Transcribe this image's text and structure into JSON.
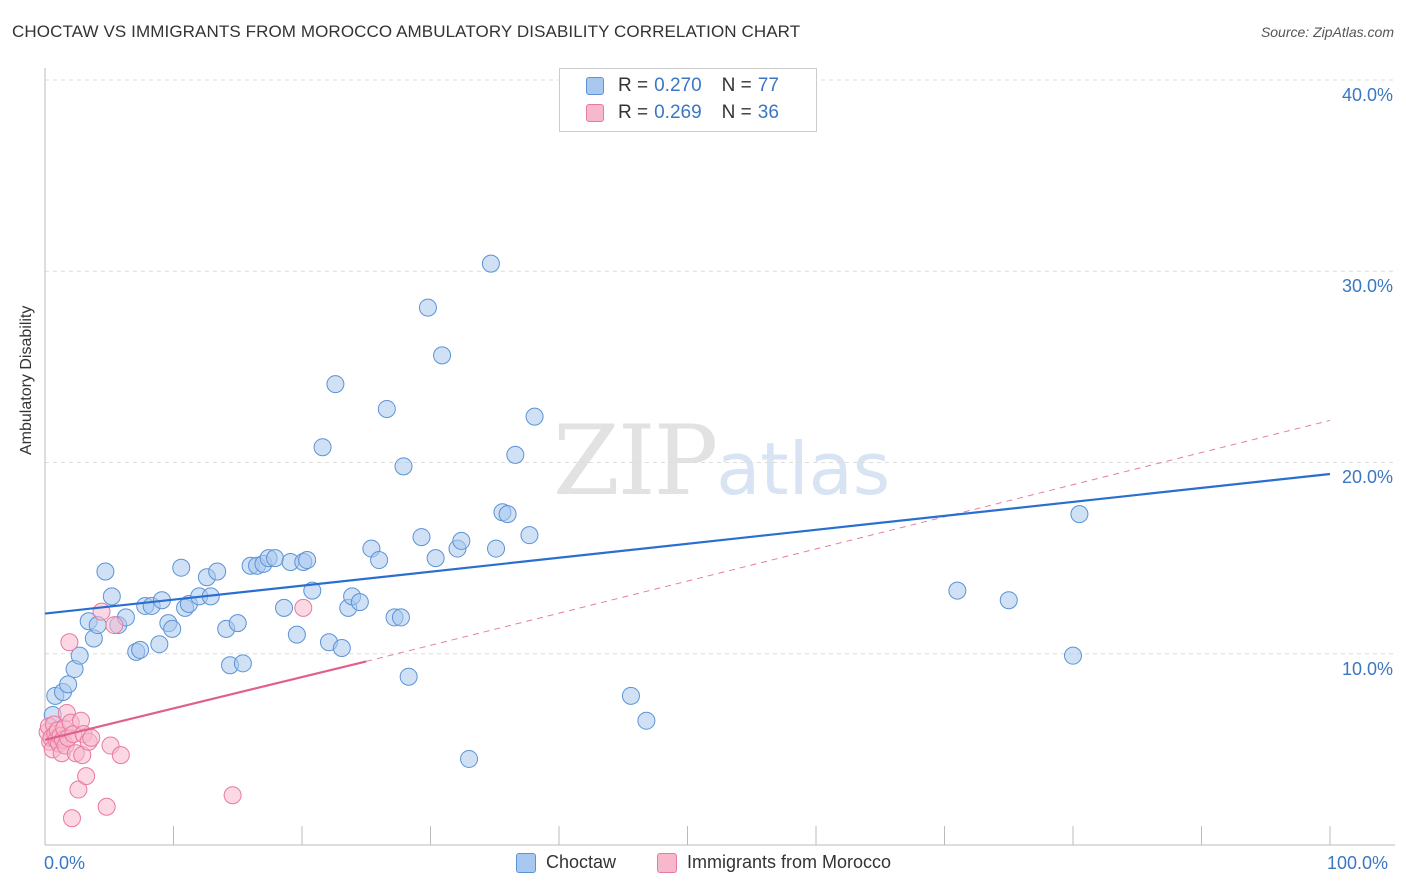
{
  "title": "CHOCTAW VS IMMIGRANTS FROM MOROCCO AMBULATORY DISABILITY CORRELATION CHART",
  "source": "Source: ZipAtlas.com",
  "watermark": {
    "zip": "ZIP",
    "atlas": "atlas"
  },
  "legend": {
    "rows": [
      {
        "r_label": "R =",
        "r_value": "0.270",
        "n_label": "N =",
        "n_value": "77"
      },
      {
        "r_label": "R =",
        "r_value": "0.269",
        "n_label": "N =",
        "n_value": "36"
      }
    ]
  },
  "colors": {
    "blue_fill": "#a9c8ef",
    "blue_stroke": "#5b93d6",
    "blue_line": "#2a6fd0",
    "pink_fill": "#f7b8cc",
    "pink_stroke": "#e87aa0",
    "pink_line": "#e0608c",
    "grid": "#dddddd",
    "tick_label": "#3a77c2"
  },
  "chart_data": {
    "type": "scatter",
    "title": "CHOCTAW VS IMMIGRANTS FROM MOROCCO AMBULATORY DISABILITY CORRELATION CHART",
    "xlabel": "",
    "ylabel": "Ambulatory Disability",
    "xlim": [
      0,
      100
    ],
    "ylim": [
      0,
      40
    ],
    "x_tick_labels": [
      "0.0%",
      "100.0%"
    ],
    "y_ticks": [
      10,
      20,
      30,
      40
    ],
    "y_tick_labels": [
      "10.0%",
      "20.0%",
      "30.0%",
      "40.0%"
    ],
    "grid": true,
    "series": [
      {
        "name": "Choctaw",
        "color": "#a9c8ef",
        "r": 0.27,
        "n": 77,
        "trend": {
          "x0": 0,
          "y0": 12.1,
          "x1": 100,
          "y1": 19.4,
          "style": "solid"
        },
        "points": [
          [
            0.6,
            6.8
          ],
          [
            0.8,
            7.8
          ],
          [
            1.4,
            8.0
          ],
          [
            1.8,
            8.4
          ],
          [
            2.3,
            9.2
          ],
          [
            2.7,
            9.9
          ],
          [
            3.4,
            11.7
          ],
          [
            3.8,
            10.8
          ],
          [
            4.1,
            11.5
          ],
          [
            4.7,
            14.3
          ],
          [
            5.2,
            13.0
          ],
          [
            5.7,
            11.5
          ],
          [
            6.3,
            11.9
          ],
          [
            7.1,
            10.1
          ],
          [
            7.4,
            10.2
          ],
          [
            7.8,
            12.5
          ],
          [
            8.3,
            12.5
          ],
          [
            8.9,
            10.5
          ],
          [
            9.1,
            12.8
          ],
          [
            9.6,
            11.6
          ],
          [
            9.9,
            11.3
          ],
          [
            10.6,
            14.5
          ],
          [
            10.9,
            12.4
          ],
          [
            11.2,
            12.6
          ],
          [
            12.0,
            13.0
          ],
          [
            12.6,
            14.0
          ],
          [
            12.9,
            13.0
          ],
          [
            13.4,
            14.3
          ],
          [
            14.1,
            11.3
          ],
          [
            14.4,
            9.4
          ],
          [
            15.0,
            11.6
          ],
          [
            15.4,
            9.5
          ],
          [
            16.0,
            14.6
          ],
          [
            16.5,
            14.6
          ],
          [
            17.0,
            14.7
          ],
          [
            17.4,
            15.0
          ],
          [
            17.9,
            15.0
          ],
          [
            18.6,
            12.4
          ],
          [
            19.1,
            14.8
          ],
          [
            19.6,
            11.0
          ],
          [
            20.1,
            14.8
          ],
          [
            20.4,
            14.9
          ],
          [
            20.8,
            13.3
          ],
          [
            21.6,
            20.8
          ],
          [
            22.1,
            10.6
          ],
          [
            22.6,
            24.1
          ],
          [
            23.1,
            10.3
          ],
          [
            23.6,
            12.4
          ],
          [
            23.9,
            13.0
          ],
          [
            24.5,
            12.7
          ],
          [
            25.4,
            15.5
          ],
          [
            26.0,
            14.9
          ],
          [
            26.6,
            22.8
          ],
          [
            27.2,
            11.9
          ],
          [
            27.7,
            11.9
          ],
          [
            27.9,
            19.8
          ],
          [
            28.3,
            8.8
          ],
          [
            29.3,
            16.1
          ],
          [
            29.8,
            28.1
          ],
          [
            30.4,
            15.0
          ],
          [
            30.9,
            25.6
          ],
          [
            32.1,
            15.5
          ],
          [
            32.4,
            15.9
          ],
          [
            33.0,
            4.5
          ],
          [
            34.7,
            30.4
          ],
          [
            35.1,
            15.5
          ],
          [
            35.6,
            17.4
          ],
          [
            36.0,
            17.3
          ],
          [
            36.6,
            20.4
          ],
          [
            37.7,
            16.2
          ],
          [
            38.1,
            22.4
          ],
          [
            45.6,
            7.8
          ],
          [
            46.8,
            6.5
          ],
          [
            71.0,
            13.3
          ],
          [
            75.0,
            12.8
          ],
          [
            80.0,
            9.9
          ],
          [
            80.5,
            17.3
          ]
        ]
      },
      {
        "name": "Immigrants from Morocco",
        "color": "#f7b8cc",
        "r": 0.269,
        "n": 36,
        "trend": {
          "x0": 0,
          "y0": 5.5,
          "x1": 25,
          "y1": 9.6,
          "style": "solid",
          "ext_x1": 100,
          "ext_y1": 22.2,
          "ext_style": "dashed"
        },
        "points": [
          [
            0.2,
            5.9
          ],
          [
            0.3,
            6.2
          ],
          [
            0.4,
            5.4
          ],
          [
            0.5,
            5.6
          ],
          [
            0.6,
            5.0
          ],
          [
            0.7,
            6.3
          ],
          [
            0.8,
            5.8
          ],
          [
            0.9,
            5.5
          ],
          [
            1.0,
            6.0
          ],
          [
            1.1,
            5.3
          ],
          [
            1.2,
            5.7
          ],
          [
            1.3,
            4.8
          ],
          [
            1.4,
            5.5
          ],
          [
            1.5,
            6.1
          ],
          [
            1.6,
            5.2
          ],
          [
            1.7,
            6.9
          ],
          [
            1.8,
            5.6
          ],
          [
            1.9,
            10.6
          ],
          [
            2.0,
            6.4
          ],
          [
            2.1,
            1.4
          ],
          [
            2.2,
            5.8
          ],
          [
            2.4,
            4.8
          ],
          [
            2.6,
            2.9
          ],
          [
            2.8,
            6.5
          ],
          [
            2.9,
            4.7
          ],
          [
            3.0,
            5.8
          ],
          [
            3.2,
            3.6
          ],
          [
            3.4,
            5.4
          ],
          [
            3.6,
            5.6
          ],
          [
            4.4,
            12.2
          ],
          [
            4.8,
            2.0
          ],
          [
            5.1,
            5.2
          ],
          [
            5.4,
            11.5
          ],
          [
            5.9,
            4.7
          ],
          [
            14.6,
            2.6
          ],
          [
            20.1,
            12.4
          ]
        ]
      }
    ]
  },
  "bottom_legend": [
    {
      "label": "Choctaw"
    },
    {
      "label": "Immigrants from Morocco"
    }
  ]
}
